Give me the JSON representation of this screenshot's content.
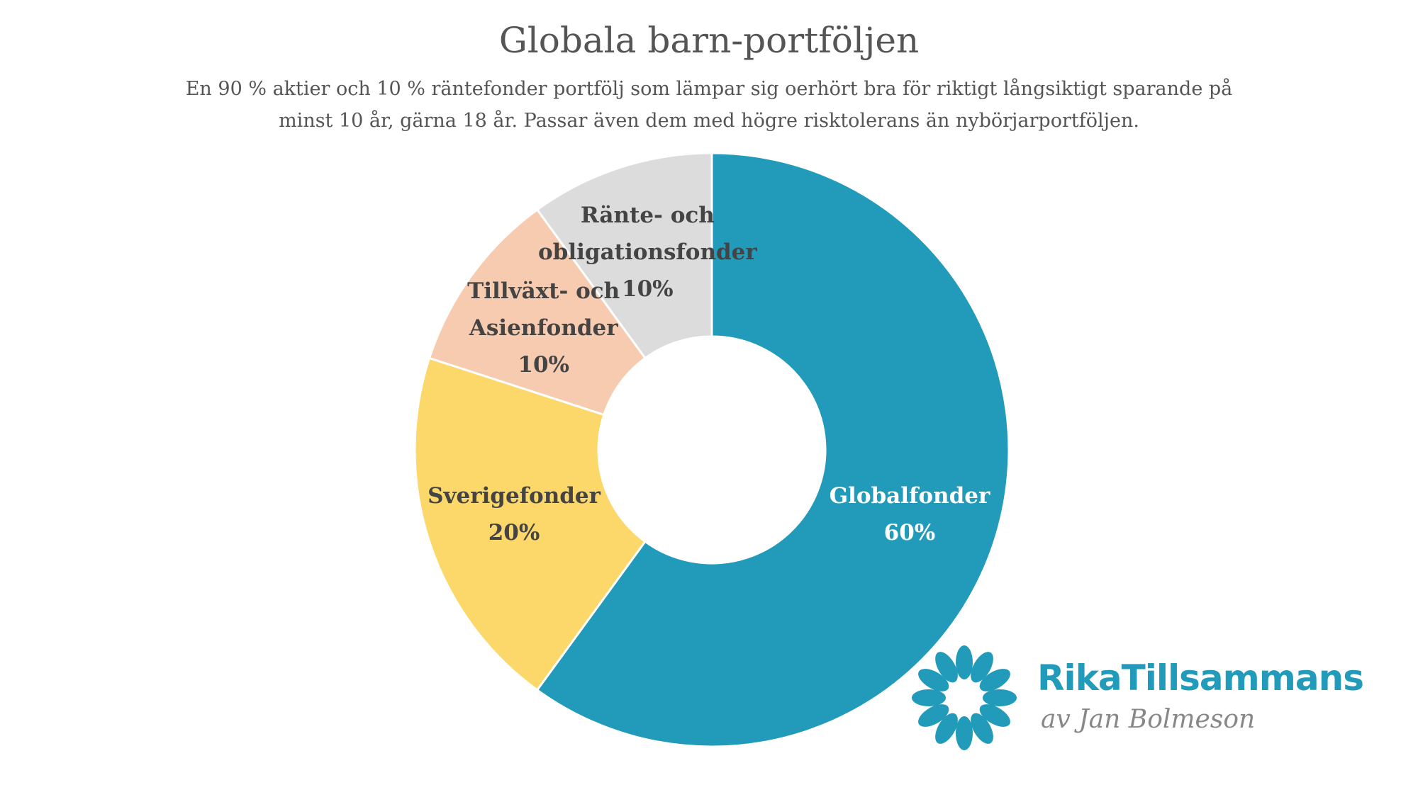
{
  "chart_data": {
    "type": "donut",
    "title": "Globala barn-portföljen",
    "subtitle": "En 90 % aktier och 10 % räntefonder portfölj som lämpar sig oerhört bra för riktigt långsiktigt sparande på minst 10 år, gärna 18 år. Passar även dem med högre risktolerans än nybörjarportföljen.",
    "categories": [
      "Globalfonder",
      "Sverigefonder",
      "Tillväxt- och Asienfonder",
      "Ränte- och obligationsfonder"
    ],
    "values": [
      60,
      20,
      10,
      10
    ],
    "value_labels": [
      "60%",
      "20%",
      "10%",
      "10%"
    ],
    "colors": [
      "#219bb9",
      "#fcd76a",
      "#f7cbb0",
      "#dcdcdc"
    ]
  },
  "logo": {
    "name": "RikaTillsammans",
    "tagline": "av Jan Bolmeson"
  }
}
